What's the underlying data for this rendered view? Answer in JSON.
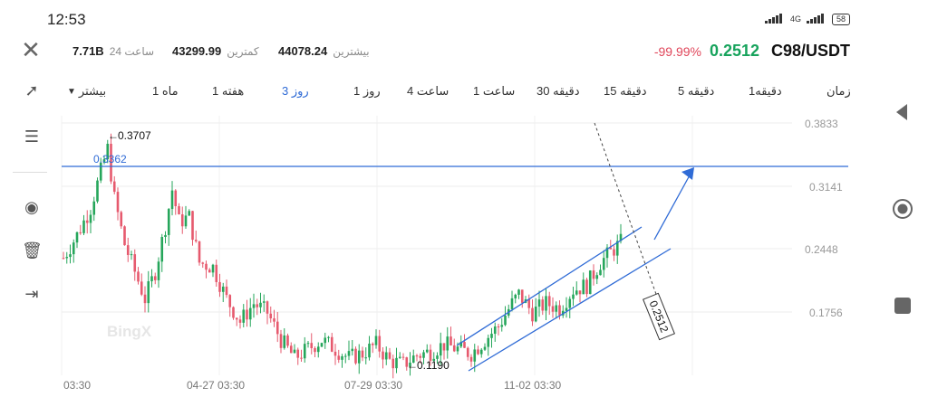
{
  "status_bar": {
    "time": "12:53",
    "network": "4G",
    "battery": "58"
  },
  "header": {
    "pair": "C98/USDT",
    "price": "0.2512",
    "change": "-99.99%",
    "high_label": "بیشترین",
    "high_value": "44078.24",
    "low_label": "کمترین",
    "low_value": "43299.99",
    "volume_label": "ساعت 24",
    "volume_value": "7.71B"
  },
  "timeframes": {
    "more_label": "بیشتر",
    "items": [
      "1 ماه",
      "1 هفته",
      "3 روز",
      "1 روز",
      "4 ساعت",
      "1 ساعت",
      "30 دقیقه",
      "15 دقیقه",
      "5 دقیقه",
      "1دقیقه",
      "زمان"
    ],
    "active": "3 روز"
  },
  "chart_data": {
    "type": "candlestick",
    "watermark": "BingX",
    "y_ticks": [
      "0.3833",
      "0.3141",
      "0.2448",
      "0.1756"
    ],
    "x_ticks": [
      "03:30",
      "04-27 03:30",
      "07-29 03:30",
      "11-02 03:30"
    ],
    "annotations": {
      "high_marker": "0.3707",
      "low_marker": "0.1190",
      "horizontal_line": "0.3362",
      "current_price_tag": "0.2512"
    },
    "y_range": [
      0.1,
      0.39
    ],
    "colors": {
      "up": "#26a65b",
      "down": "#e65a6e",
      "drawing": "#2f6bd6"
    }
  }
}
